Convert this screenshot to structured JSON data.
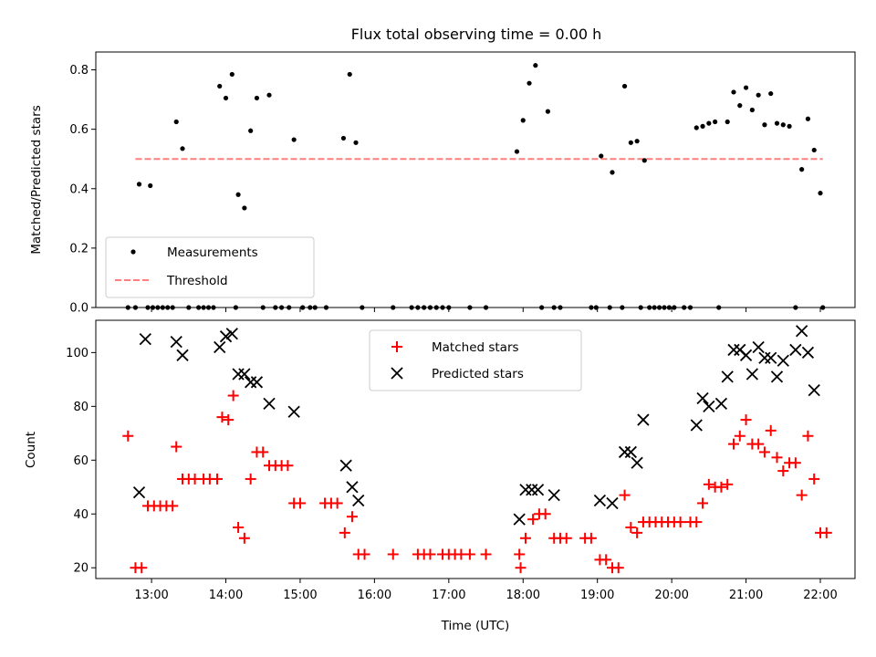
{
  "chart_data": [
    {
      "type": "scatter",
      "title": "Flux total observing time = 0.00 h",
      "xlabel": "",
      "ylabel": "Matched/Predicted stars",
      "xlim": [
        "12:15",
        "22:28"
      ],
      "ylim": [
        0,
        0.86
      ],
      "yticks": [
        0.0,
        0.2,
        0.4,
        0.6,
        0.8
      ],
      "xticks": [
        "13:00",
        "14:00",
        "15:00",
        "16:00",
        "17:00",
        "18:00",
        "19:00",
        "20:00",
        "21:00",
        "22:00"
      ],
      "legend": {
        "position": "lower-left",
        "entries": [
          "Measurements",
          "Threshold"
        ]
      },
      "threshold": {
        "name": "Threshold",
        "value": 0.5,
        "x_range": [
          "12:47",
          "22:02"
        ],
        "color": "#ff7f7f",
        "style": "dashed"
      },
      "series": [
        {
          "name": "Measurements",
          "marker": "dot",
          "color": "#000000",
          "points": [
            [
              "12:41",
              0.0
            ],
            [
              "12:47",
              0.0
            ],
            [
              "12:50",
              0.415
            ],
            [
              "12:57",
              0.0
            ],
            [
              "12:59",
              0.41
            ],
            [
              "13:01",
              0.0
            ],
            [
              "13:05",
              0.0
            ],
            [
              "13:09",
              0.0
            ],
            [
              "13:13",
              0.0
            ],
            [
              "13:17",
              0.0
            ],
            [
              "13:20",
              0.625
            ],
            [
              "13:25",
              0.535
            ],
            [
              "13:30",
              0.0
            ],
            [
              "13:38",
              0.0
            ],
            [
              "13:42",
              0.0
            ],
            [
              "13:46",
              0.0
            ],
            [
              "13:50",
              0.0
            ],
            [
              "13:55",
              0.745
            ],
            [
              "14:00",
              0.705
            ],
            [
              "14:05",
              0.785
            ],
            [
              "14:08",
              0.0
            ],
            [
              "14:10",
              0.38
            ],
            [
              "14:15",
              0.335
            ],
            [
              "14:20",
              0.595
            ],
            [
              "14:25",
              0.705
            ],
            [
              "14:30",
              0.0
            ],
            [
              "14:35",
              0.715
            ],
            [
              "14:40",
              0.0
            ],
            [
              "14:45",
              0.0
            ],
            [
              "14:51",
              0.0
            ],
            [
              "14:55",
              0.565
            ],
            [
              "15:02",
              0.0
            ],
            [
              "15:08",
              0.0
            ],
            [
              "15:12",
              0.0
            ],
            [
              "15:21",
              0.0
            ],
            [
              "15:35",
              0.57
            ],
            [
              "15:40",
              0.785
            ],
            [
              "15:45",
              0.555
            ],
            [
              "15:50",
              0.0
            ],
            [
              "16:15",
              0.0
            ],
            [
              "16:30",
              0.0
            ],
            [
              "16:35",
              0.0
            ],
            [
              "16:40",
              0.0
            ],
            [
              "16:45",
              0.0
            ],
            [
              "16:50",
              0.0
            ],
            [
              "16:55",
              0.0
            ],
            [
              "17:00",
              0.0
            ],
            [
              "17:17",
              0.0
            ],
            [
              "17:30",
              0.0
            ],
            [
              "17:55",
              0.525
            ],
            [
              "18:00",
              0.63
            ],
            [
              "18:05",
              0.755
            ],
            [
              "18:10",
              0.815
            ],
            [
              "18:15",
              0.0
            ],
            [
              "18:20",
              0.66
            ],
            [
              "18:25",
              0.0
            ],
            [
              "18:30",
              0.0
            ],
            [
              "18:55",
              0.0
            ],
            [
              "18:59",
              0.0
            ],
            [
              "19:03",
              0.51
            ],
            [
              "19:10",
              0.0
            ],
            [
              "19:12",
              0.455
            ],
            [
              "19:20",
              0.0
            ],
            [
              "19:22",
              0.745
            ],
            [
              "19:27",
              0.555
            ],
            [
              "19:32",
              0.56
            ],
            [
              "19:35",
              0.0
            ],
            [
              "19:38",
              0.495
            ],
            [
              "19:42",
              0.0
            ],
            [
              "19:46",
              0.0
            ],
            [
              "19:50",
              0.0
            ],
            [
              "19:54",
              0.0
            ],
            [
              "19:58",
              0.0
            ],
            [
              "20:02",
              0.0
            ],
            [
              "20:10",
              0.0
            ],
            [
              "20:15",
              0.0
            ],
            [
              "20:20",
              0.605
            ],
            [
              "20:25",
              0.61
            ],
            [
              "20:30",
              0.62
            ],
            [
              "20:35",
              0.625
            ],
            [
              "20:38",
              0.0
            ],
            [
              "20:45",
              0.625
            ],
            [
              "20:50",
              0.725
            ],
            [
              "20:55",
              0.68
            ],
            [
              "21:00",
              0.74
            ],
            [
              "21:05",
              0.665
            ],
            [
              "21:10",
              0.715
            ],
            [
              "21:15",
              0.615
            ],
            [
              "21:20",
              0.72
            ],
            [
              "21:25",
              0.62
            ],
            [
              "21:30",
              0.615
            ],
            [
              "21:35",
              0.61
            ],
            [
              "21:40",
              0.0
            ],
            [
              "21:45",
              0.465
            ],
            [
              "21:50",
              0.635
            ],
            [
              "21:55",
              0.53
            ],
            [
              "22:00",
              0.385
            ],
            [
              "22:02",
              0.0
            ]
          ]
        }
      ]
    },
    {
      "type": "scatter",
      "title": "",
      "xlabel": "Time (UTC)",
      "ylabel": "Count",
      "xlim": [
        "12:15",
        "22:28"
      ],
      "ylim": [
        16,
        112
      ],
      "yticks": [
        20,
        40,
        60,
        80,
        100
      ],
      "xticks": [
        "13:00",
        "14:00",
        "15:00",
        "16:00",
        "17:00",
        "18:00",
        "19:00",
        "20:00",
        "21:00",
        "22:00"
      ],
      "legend": {
        "position": "upper-center",
        "entries": [
          "Matched stars",
          "Predicted stars"
        ]
      },
      "series": [
        {
          "name": "Matched stars",
          "marker": "plus",
          "color": "#ff0000",
          "points": [
            [
              "12:41",
              69
            ],
            [
              "12:47",
              20
            ],
            [
              "12:52",
              20
            ],
            [
              "12:57",
              43
            ],
            [
              "13:02",
              43
            ],
            [
              "13:07",
              43
            ],
            [
              "13:12",
              43
            ],
            [
              "13:17",
              43
            ],
            [
              "13:20",
              65
            ],
            [
              "13:25",
              53
            ],
            [
              "13:30",
              53
            ],
            [
              "13:35",
              53
            ],
            [
              "13:42",
              53
            ],
            [
              "13:47",
              53
            ],
            [
              "13:53",
              53
            ],
            [
              "13:57",
              76
            ],
            [
              "14:02",
              75
            ],
            [
              "14:06",
              84
            ],
            [
              "14:10",
              35
            ],
            [
              "14:15",
              31
            ],
            [
              "14:20",
              53
            ],
            [
              "14:25",
              63
            ],
            [
              "14:30",
              63
            ],
            [
              "14:35",
              58
            ],
            [
              "14:40",
              58
            ],
            [
              "14:45",
              58
            ],
            [
              "14:50",
              58
            ],
            [
              "14:55",
              44
            ],
            [
              "15:00",
              44
            ],
            [
              "15:20",
              44
            ],
            [
              "15:25",
              44
            ],
            [
              "15:30",
              44
            ],
            [
              "15:36",
              33
            ],
            [
              "15:42",
              39
            ],
            [
              "15:47",
              25
            ],
            [
              "15:52",
              25
            ],
            [
              "16:15",
              25
            ],
            [
              "16:35",
              25
            ],
            [
              "16:40",
              25
            ],
            [
              "16:45",
              25
            ],
            [
              "16:55",
              25
            ],
            [
              "17:00",
              25
            ],
            [
              "17:05",
              25
            ],
            [
              "17:10",
              25
            ],
            [
              "17:17",
              25
            ],
            [
              "17:30",
              25
            ],
            [
              "17:57",
              25
            ],
            [
              "17:58",
              20
            ],
            [
              "18:02",
              31
            ],
            [
              "18:08",
              38
            ],
            [
              "18:13",
              40
            ],
            [
              "18:18",
              40
            ],
            [
              "18:25",
              31
            ],
            [
              "18:30",
              31
            ],
            [
              "18:35",
              31
            ],
            [
              "18:50",
              31
            ],
            [
              "18:55",
              31
            ],
            [
              "19:02",
              23
            ],
            [
              "19:07",
              23
            ],
            [
              "19:12",
              20
            ],
            [
              "19:17",
              20
            ],
            [
              "19:22",
              47
            ],
            [
              "19:27",
              35
            ],
            [
              "19:32",
              33
            ],
            [
              "19:37",
              37
            ],
            [
              "19:42",
              37
            ],
            [
              "19:47",
              37
            ],
            [
              "19:52",
              37
            ],
            [
              "19:57",
              37
            ],
            [
              "20:02",
              37
            ],
            [
              "20:07",
              37
            ],
            [
              "20:15",
              37
            ],
            [
              "20:20",
              37
            ],
            [
              "20:25",
              44
            ],
            [
              "20:30",
              51
            ],
            [
              "20:35",
              50
            ],
            [
              "20:40",
              50
            ],
            [
              "20:45",
              51
            ],
            [
              "20:50",
              66
            ],
            [
              "20:55",
              69
            ],
            [
              "21:00",
              75
            ],
            [
              "21:05",
              66
            ],
            [
              "21:10",
              66
            ],
            [
              "21:15",
              63
            ],
            [
              "21:20",
              71
            ],
            [
              "21:25",
              61
            ],
            [
              "21:30",
              56
            ],
            [
              "21:35",
              59
            ],
            [
              "21:40",
              59
            ],
            [
              "21:45",
              47
            ],
            [
              "21:50",
              69
            ],
            [
              "21:55",
              53
            ],
            [
              "22:00",
              33
            ],
            [
              "22:05",
              33
            ]
          ]
        },
        {
          "name": "Predicted stars",
          "marker": "x",
          "color": "#000000",
          "points": [
            [
              "12:50",
              48
            ],
            [
              "12:55",
              105
            ],
            [
              "13:20",
              104
            ],
            [
              "13:25",
              99
            ],
            [
              "13:55",
              102
            ],
            [
              "14:00",
              106
            ],
            [
              "14:05",
              107
            ],
            [
              "14:10",
              92
            ],
            [
              "14:15",
              92
            ],
            [
              "14:20",
              89
            ],
            [
              "14:25",
              89
            ],
            [
              "14:35",
              81
            ],
            [
              "14:55",
              78
            ],
            [
              "15:37",
              58
            ],
            [
              "15:42",
              50
            ],
            [
              "15:47",
              45
            ],
            [
              "17:57",
              38
            ],
            [
              "18:02",
              49
            ],
            [
              "18:07",
              49
            ],
            [
              "18:12",
              49
            ],
            [
              "18:25",
              47
            ],
            [
              "19:02",
              45
            ],
            [
              "19:12",
              44
            ],
            [
              "19:22",
              63
            ],
            [
              "19:27",
              63
            ],
            [
              "19:32",
              59
            ],
            [
              "19:37",
              75
            ],
            [
              "20:20",
              73
            ],
            [
              "20:25",
              83
            ],
            [
              "20:30",
              80
            ],
            [
              "20:40",
              81
            ],
            [
              "20:45",
              91
            ],
            [
              "20:50",
              101
            ],
            [
              "20:55",
              101
            ],
            [
              "21:00",
              99
            ],
            [
              "21:05",
              92
            ],
            [
              "21:10",
              102
            ],
            [
              "21:15",
              98
            ],
            [
              "21:20",
              98
            ],
            [
              "21:25",
              91
            ],
            [
              "21:30",
              97
            ],
            [
              "21:40",
              101
            ],
            [
              "21:45",
              108
            ],
            [
              "21:50",
              100
            ],
            [
              "21:55",
              86
            ]
          ]
        }
      ]
    }
  ]
}
